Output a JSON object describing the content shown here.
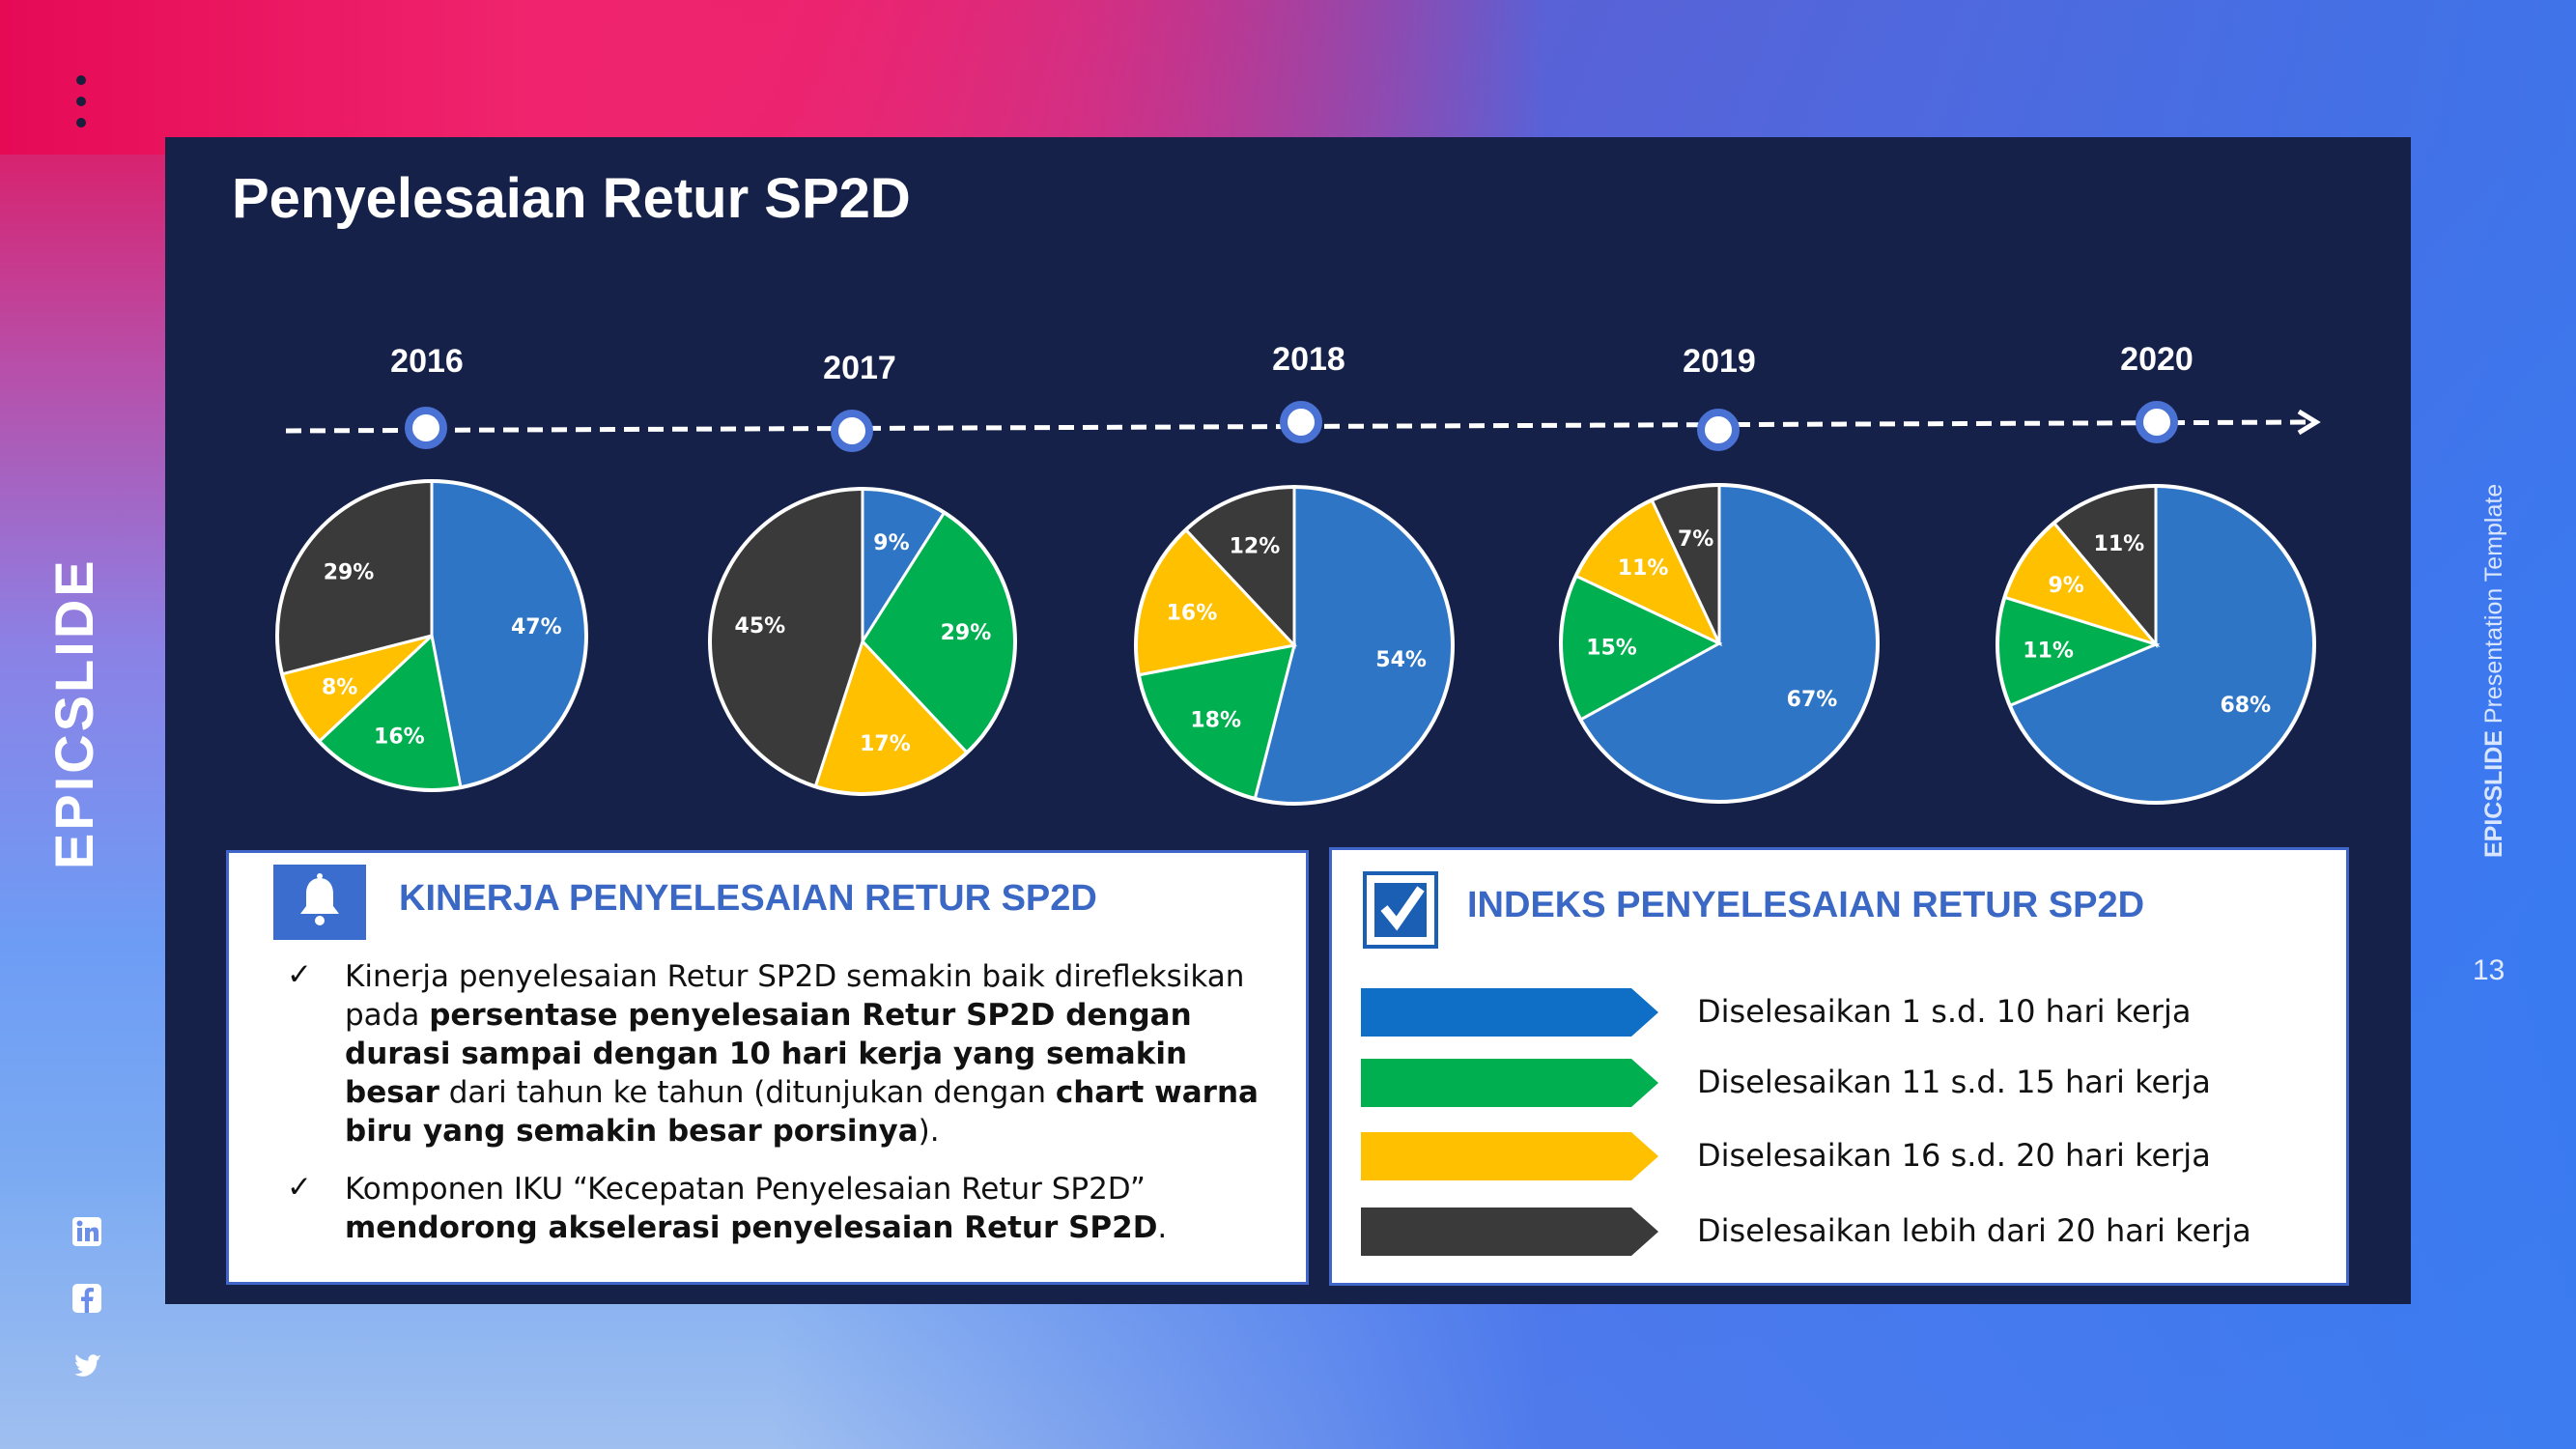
{
  "title": "Penyelesaian Retur SP2D",
  "brand_left": "EPICSLIDE",
  "brand_right": {
    "bold": "EPICSLIDE",
    "rest": " Presentation Template"
  },
  "page_number": "13",
  "social_icons": [
    "linkedin-icon",
    "facebook-icon",
    "twitter-icon"
  ],
  "colors": {
    "blue": "#2e75c6",
    "green": "#00b050",
    "yellow": "#ffc000",
    "dark": "#3a3a3a",
    "panel": "#16214a",
    "accent": "#3a68c4"
  },
  "chart_data": [
    {
      "type": "pie",
      "year": "2016",
      "slices": [
        {
          "category": "1-10 hari",
          "value": 47,
          "label": "47%"
        },
        {
          "category": "11-15 hari",
          "value": 16,
          "label": "16%"
        },
        {
          "category": "16-20 hari",
          "value": 8,
          "label": "8%"
        },
        {
          "category": ">20 hari",
          "value": 29,
          "label": "29%"
        }
      ]
    },
    {
      "type": "pie",
      "year": "2017",
      "slices": [
        {
          "category": "1-10 hari",
          "value": 9,
          "label": "9%"
        },
        {
          "category": "11-15 hari",
          "value": 29,
          "label": "29%"
        },
        {
          "category": "16-20 hari",
          "value": 17,
          "label": "17%"
        },
        {
          "category": ">20 hari",
          "value": 45,
          "label": "45%"
        }
      ]
    },
    {
      "type": "pie",
      "year": "2018",
      "slices": [
        {
          "category": "1-10 hari",
          "value": 54,
          "label": "54%"
        },
        {
          "category": "11-15 hari",
          "value": 18,
          "label": "18%"
        },
        {
          "category": "16-20 hari",
          "value": 16,
          "label": "16%"
        },
        {
          "category": ">20 hari",
          "value": 12,
          "label": "12%"
        }
      ]
    },
    {
      "type": "pie",
      "year": "2019",
      "slices": [
        {
          "category": "1-10 hari",
          "value": 67,
          "label": "67%"
        },
        {
          "category": "11-15 hari",
          "value": 15,
          "label": "15%"
        },
        {
          "category": "16-20 hari",
          "value": 11,
          "label": "11%"
        },
        {
          "category": ">20 hari",
          "value": 7,
          "label": "7%"
        }
      ]
    },
    {
      "type": "pie",
      "year": "2020",
      "slices": [
        {
          "category": "1-10 hari",
          "value": 68,
          "label": "68%"
        },
        {
          "category": "11-15 hari",
          "value": 11,
          "label": "11%"
        },
        {
          "category": "16-20 hari",
          "value": 9,
          "label": "9%"
        },
        {
          "category": ">20 hari",
          "value": 11,
          "label": "11%"
        }
      ]
    }
  ],
  "kinerja": {
    "heading": "KINERJA PENYELESAIAN RETUR SP2D",
    "icon": "bell-icon",
    "bullet_mark": "✓",
    "item1": {
      "t1": "Kinerja penyelesaian Retur SP2D semakin baik direfleksikan pada ",
      "b1": "persentase penyelesaian Retur SP2D dengan durasi sampai dengan 10 hari kerja yang semakin besar",
      "t2": " dari tahun ke tahun (ditunjukan dengan ",
      "b2": "chart warna biru yang semakin besar porsinya",
      "t3": ")."
    },
    "item2": {
      "t1": "Komponen IKU “Kecepatan Penyelesaian Retur SP2D” ",
      "b1": "mendorong akselerasi penyelesaian Retur SP2D",
      "t2": "."
    }
  },
  "indeks": {
    "heading": "INDEKS PENYELESAIAN RETUR SP2D",
    "icon": "checkbox-icon",
    "legend": [
      {
        "label": "Diselesaikan 1 s.d. 10 hari kerja",
        "color": "#0f6fc6"
      },
      {
        "label": "Diselesaikan 11 s.d. 15 hari kerja",
        "color": "#00b050"
      },
      {
        "label": "Diselesaikan 16 s.d. 20 hari kerja",
        "color": "#ffc000"
      },
      {
        "label": "Diselesaikan lebih dari 20 hari kerja",
        "color": "#3a3a3a"
      }
    ]
  }
}
